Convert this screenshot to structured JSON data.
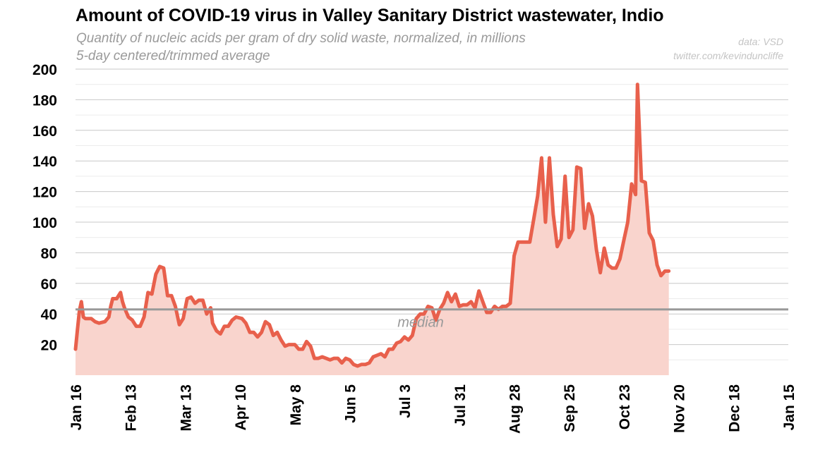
{
  "chart_data": {
    "type": "area",
    "title": "Amount of COVID-19 virus in Valley Sanitary District wastewater, Indio",
    "subtitle_line1": "Quantity of nucleic acids per gram of dry solid waste, normalized, in millions",
    "subtitle_line2": "5-day centered/trimmed average",
    "source": "data: VSD",
    "credit": "twitter.com/kevinduncliffe",
    "xlabel": "",
    "ylabel": "",
    "ylim": [
      0,
      200
    ],
    "ytick_values": [
      20,
      40,
      60,
      80,
      100,
      120,
      140,
      160,
      180,
      200
    ],
    "x_range_days": [
      0,
      364
    ],
    "x_ticks": [
      {
        "label": "Jan 16",
        "day": 0
      },
      {
        "label": "Feb 13",
        "day": 28
      },
      {
        "label": "Mar 13",
        "day": 56
      },
      {
        "label": "Apr 10",
        "day": 84
      },
      {
        "label": "May 8",
        "day": 112
      },
      {
        "label": "Jun 5",
        "day": 140
      },
      {
        "label": "Jul 3",
        "day": 168
      },
      {
        "label": "Jul 31",
        "day": 196
      },
      {
        "label": "Aug 28",
        "day": 224
      },
      {
        "label": "Sep 25",
        "day": 252
      },
      {
        "label": "Oct 23",
        "day": 280
      },
      {
        "label": "Nov 20",
        "day": 308
      },
      {
        "label": "Dec 18",
        "day": 336
      },
      {
        "label": "Jan 15",
        "day": 364
      }
    ],
    "median": 43,
    "median_label": "median",
    "series": [
      {
        "name": "5-day average",
        "color": "#e8604c",
        "fill": "#f9d4cd",
        "points": [
          [
            0,
            17
          ],
          [
            1,
            30
          ],
          [
            2,
            42
          ],
          [
            3,
            48
          ],
          [
            4,
            38
          ],
          [
            5,
            37
          ],
          [
            8,
            37
          ],
          [
            10,
            35
          ],
          [
            12,
            34
          ],
          [
            15,
            35
          ],
          [
            17,
            38
          ],
          [
            18,
            45
          ],
          [
            19,
            50
          ],
          [
            21,
            50
          ],
          [
            23,
            54
          ],
          [
            24,
            48
          ],
          [
            25,
            44
          ],
          [
            27,
            38
          ],
          [
            29,
            36
          ],
          [
            31,
            32
          ],
          [
            33,
            32
          ],
          [
            35,
            38
          ],
          [
            37,
            54
          ],
          [
            39,
            53
          ],
          [
            41,
            66
          ],
          [
            43,
            71
          ],
          [
            45,
            70
          ],
          [
            47,
            52
          ],
          [
            49,
            52
          ],
          [
            51,
            45
          ],
          [
            53,
            33
          ],
          [
            55,
            37
          ],
          [
            57,
            50
          ],
          [
            59,
            51
          ],
          [
            61,
            47
          ],
          [
            63,
            49
          ],
          [
            65,
            49
          ],
          [
            67,
            40
          ],
          [
            69,
            44
          ],
          [
            70,
            34
          ],
          [
            72,
            29
          ],
          [
            74,
            27
          ],
          [
            76,
            32
          ],
          [
            78,
            32
          ],
          [
            80,
            36
          ],
          [
            82,
            38
          ],
          [
            85,
            37
          ],
          [
            87,
            34
          ],
          [
            89,
            28
          ],
          [
            91,
            28
          ],
          [
            93,
            25
          ],
          [
            95,
            28
          ],
          [
            97,
            35
          ],
          [
            99,
            33
          ],
          [
            101,
            26
          ],
          [
            103,
            28
          ],
          [
            105,
            23
          ],
          [
            107,
            19
          ],
          [
            109,
            20
          ],
          [
            112,
            20
          ],
          [
            114,
            17
          ],
          [
            116,
            17
          ],
          [
            118,
            22
          ],
          [
            120,
            19
          ],
          [
            122,
            11
          ],
          [
            124,
            11
          ],
          [
            126,
            12
          ],
          [
            128,
            11
          ],
          [
            130,
            10
          ],
          [
            132,
            11
          ],
          [
            134,
            11
          ],
          [
            136,
            8
          ],
          [
            138,
            11
          ],
          [
            140,
            10
          ],
          [
            142,
            7
          ],
          [
            144,
            6
          ],
          [
            146,
            7
          ],
          [
            148,
            7
          ],
          [
            150,
            8
          ],
          [
            152,
            12
          ],
          [
            154,
            13
          ],
          [
            156,
            14
          ],
          [
            158,
            12
          ],
          [
            160,
            17
          ],
          [
            162,
            17
          ],
          [
            164,
            21
          ],
          [
            166,
            22
          ],
          [
            168,
            25
          ],
          [
            170,
            23
          ],
          [
            172,
            26
          ],
          [
            174,
            37
          ],
          [
            176,
            40
          ],
          [
            178,
            40
          ],
          [
            180,
            45
          ],
          [
            182,
            44
          ],
          [
            184,
            36
          ],
          [
            186,
            43
          ],
          [
            188,
            47
          ],
          [
            190,
            54
          ],
          [
            192,
            48
          ],
          [
            194,
            53
          ],
          [
            196,
            45
          ],
          [
            198,
            46
          ],
          [
            200,
            46
          ],
          [
            202,
            48
          ],
          [
            204,
            44
          ],
          [
            206,
            55
          ],
          [
            208,
            48
          ],
          [
            210,
            41
          ],
          [
            212,
            41
          ],
          [
            214,
            45
          ],
          [
            216,
            43
          ],
          [
            218,
            45
          ],
          [
            220,
            45
          ],
          [
            222,
            47
          ],
          [
            224,
            78
          ],
          [
            226,
            87
          ],
          [
            229,
            87
          ],
          [
            232,
            87
          ],
          [
            234,
            102
          ],
          [
            236,
            117
          ],
          [
            238,
            142
          ],
          [
            240,
            100
          ],
          [
            242,
            142
          ],
          [
            244,
            105
          ],
          [
            246,
            84
          ],
          [
            248,
            89
          ],
          [
            250,
            130
          ],
          [
            252,
            90
          ],
          [
            254,
            95
          ],
          [
            256,
            136
          ],
          [
            258,
            135
          ],
          [
            260,
            96
          ],
          [
            262,
            112
          ],
          [
            264,
            104
          ],
          [
            266,
            82
          ],
          [
            268,
            67
          ],
          [
            270,
            83
          ],
          [
            272,
            72
          ],
          [
            274,
            70
          ],
          [
            276,
            70
          ],
          [
            278,
            76
          ],
          [
            280,
            88
          ],
          [
            282,
            100
          ],
          [
            284,
            125
          ],
          [
            286,
            118
          ],
          [
            287,
            190
          ],
          [
            289,
            127
          ],
          [
            291,
            126
          ],
          [
            293,
            93
          ],
          [
            295,
            88
          ],
          [
            297,
            72
          ],
          [
            299,
            65
          ],
          [
            301,
            68
          ],
          [
            303,
            68
          ]
        ]
      }
    ]
  }
}
